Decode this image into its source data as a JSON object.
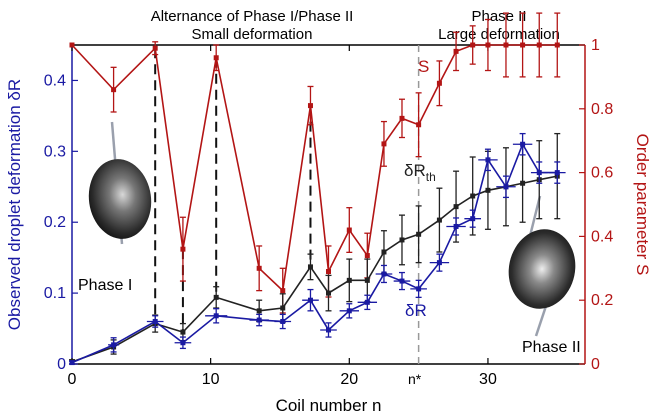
{
  "chart_data": {
    "type": "line",
    "header_left": {
      "line1": "Alternance of Phase I/Phase II",
      "line2": "Small deformation"
    },
    "header_right": {
      "line1": "Phase II",
      "line2": "Large deformation"
    },
    "xlabel": "Coil number n",
    "ylabel_left": "Observed droplet deformation δR",
    "ylabel_right": "Order parameter S",
    "xlim": [
      0,
      37
    ],
    "ylim_left": [
      0,
      0.45
    ],
    "ylim_right": [
      0,
      1
    ],
    "x_ticks": [
      "0",
      "10",
      "20",
      "30"
    ],
    "x_tick_values": [
      0,
      10,
      20,
      30
    ],
    "y_left_ticks": [
      "0",
      "0.1",
      "0.2",
      "0.3",
      "0.4"
    ],
    "y_left_tick_values": [
      0,
      0.1,
      0.2,
      0.3,
      0.4
    ],
    "y_right_ticks": [
      "0",
      "0.2",
      "0.4",
      "0.6",
      "0.8",
      "1"
    ],
    "y_right_tick_values": [
      0,
      0.2,
      0.4,
      0.6,
      0.8,
      1
    ],
    "n_star": {
      "label": "n*",
      "x": 25
    },
    "phase_dividers_x": [
      6,
      8,
      10.4,
      17.2
    ],
    "series": [
      {
        "name": "S",
        "axis": "right",
        "color": "#b31515",
        "x": [
          0,
          3,
          6,
          8,
          10.4,
          13.5,
          15.2,
          17.2,
          18.5,
          20,
          21.3,
          22.5,
          23.8,
          25,
          26.5,
          27.7,
          28.9,
          30,
          31.3,
          32.5,
          33.7,
          35
        ],
        "y": [
          1.0,
          0.86,
          0.99,
          0.36,
          0.96,
          0.3,
          0.23,
          0.81,
          0.29,
          0.42,
          0.34,
          0.69,
          0.77,
          0.75,
          0.88,
          0.98,
          1.0,
          1.0,
          1.0,
          1.0,
          1.0,
          1.0
        ],
        "err": [
          0.0,
          0.07,
          0.02,
          0.1,
          0.04,
          0.07,
          0.07,
          0.06,
          0.08,
          0.07,
          0.07,
          0.07,
          0.06,
          0.1,
          0.07,
          0.06,
          0.06,
          0.08,
          0.1,
          0.1,
          0.1,
          0.1
        ]
      },
      {
        "name": "δR_th",
        "label_main": "δR",
        "label_sub": "th",
        "axis": "left",
        "color": "#222222",
        "x": [
          0,
          3,
          6,
          8,
          10.4,
          13.5,
          15.2,
          17.2,
          18.5,
          20,
          21.3,
          22.5,
          23.8,
          25,
          26.5,
          27.7,
          28.9,
          30,
          31.3,
          32.5,
          33.7,
          35
        ],
        "y": [
          0.003,
          0.024,
          0.057,
          0.045,
          0.094,
          0.075,
          0.079,
          0.137,
          0.1,
          0.118,
          0.118,
          0.158,
          0.175,
          0.183,
          0.203,
          0.222,
          0.237,
          0.245,
          0.25,
          0.255,
          0.26,
          0.265
        ],
        "err": [
          0.003,
          0.01,
          0.012,
          0.012,
          0.015,
          0.015,
          0.02,
          0.018,
          0.025,
          0.03,
          0.03,
          0.03,
          0.035,
          0.04,
          0.045,
          0.05,
          0.055,
          0.055,
          0.055,
          0.055,
          0.055,
          0.06
        ]
      },
      {
        "name": "δR",
        "label_main": "δR",
        "axis": "left",
        "color": "#1a1aa3",
        "x": [
          0,
          3,
          6,
          8,
          10.4,
          13.5,
          15.2,
          17.2,
          18.5,
          20,
          21.3,
          22.5,
          23.8,
          25,
          26.5,
          27.7,
          28.9,
          30,
          31.3,
          32.5,
          33.7,
          35
        ],
        "y": [
          0.002,
          0.027,
          0.06,
          0.03,
          0.068,
          0.062,
          0.06,
          0.09,
          0.048,
          0.075,
          0.087,
          0.127,
          0.117,
          0.106,
          0.143,
          0.194,
          0.205,
          0.288,
          0.25,
          0.31,
          0.27,
          0.27
        ],
        "err": [
          0.002,
          0.01,
          0.008,
          0.008,
          0.01,
          0.008,
          0.01,
          0.015,
          0.01,
          0.01,
          0.01,
          0.012,
          0.012,
          0.012,
          0.012,
          0.012,
          0.012,
          0.015,
          0.015,
          0.015,
          0.015,
          0.015
        ],
        "xerr": [
          0,
          0.4,
          0.6,
          0.6,
          0.8,
          0.7,
          0.6,
          0.6,
          0.6,
          0.7,
          0.7,
          0.6,
          0.6,
          0.6,
          0.7,
          0.7,
          0.6,
          0.7,
          0.7,
          0.7,
          0.6,
          0.6
        ]
      }
    ],
    "insets": [
      {
        "label": "Phase I",
        "kind": "oblate droplet on fiber"
      },
      {
        "label": "Phase II",
        "kind": "tilted droplet on fiber"
      }
    ]
  }
}
